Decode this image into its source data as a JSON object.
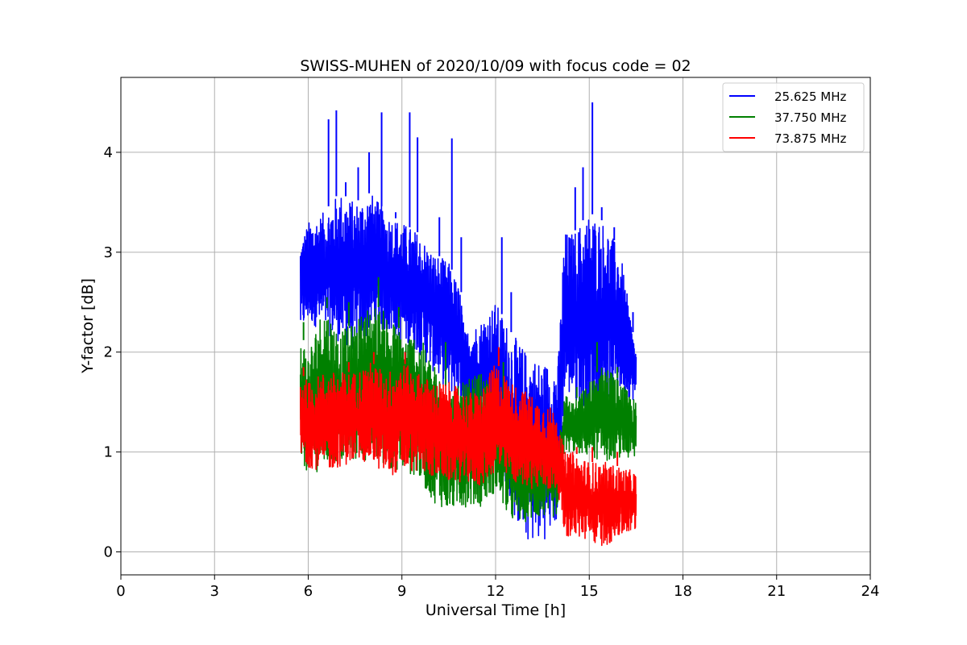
{
  "chart_data": {
    "type": "line",
    "title": "SWISS-MUHEN of 2020/10/09 with focus code = 02",
    "xlabel": "Universal Time [h]",
    "ylabel": "Y-factor [dB]",
    "xlim": [
      0,
      24
    ],
    "ylim": [
      -0.23,
      4.75
    ],
    "xticks": [
      0,
      3,
      6,
      9,
      12,
      15,
      18,
      21,
      24
    ],
    "yticks": [
      0,
      1,
      2,
      3,
      4
    ],
    "grid": true,
    "legend_position": "top-right",
    "series": [
      {
        "name": "25.625 MHz",
        "color": "#0000ff",
        "envelope": [
          [
            5.75,
            2.2,
            3.1
          ],
          [
            6.0,
            2.3,
            3.3
          ],
          [
            6.5,
            2.2,
            3.4
          ],
          [
            7.0,
            2.1,
            3.6
          ],
          [
            7.5,
            2.0,
            3.5
          ],
          [
            8.0,
            2.2,
            3.6
          ],
          [
            8.5,
            2.2,
            3.4
          ],
          [
            9.0,
            2.1,
            3.3
          ],
          [
            9.5,
            2.0,
            3.2
          ],
          [
            10.0,
            1.8,
            3.0
          ],
          [
            10.5,
            1.6,
            2.9
          ],
          [
            10.9,
            1.5,
            2.6
          ],
          [
            11.0,
            1.4,
            2.2
          ],
          [
            11.5,
            1.3,
            2.3
          ],
          [
            12.0,
            1.2,
            2.5
          ],
          [
            12.5,
            0.4,
            2.2
          ],
          [
            13.0,
            0.1,
            2.0
          ],
          [
            13.5,
            0.1,
            1.9
          ],
          [
            14.0,
            0.3,
            1.9
          ],
          [
            14.2,
            1.6,
            3.2
          ],
          [
            14.5,
            1.5,
            3.2
          ],
          [
            15.0,
            1.3,
            3.4
          ],
          [
            15.5,
            1.5,
            3.3
          ],
          [
            16.0,
            1.6,
            3.0
          ],
          [
            16.5,
            1.5,
            2.0
          ]
        ],
        "peaks": [
          [
            6.65,
            4.33
          ],
          [
            6.9,
            4.42
          ],
          [
            7.2,
            3.7
          ],
          [
            7.6,
            3.85
          ],
          [
            7.95,
            4.0
          ],
          [
            8.35,
            4.4
          ],
          [
            8.8,
            3.4
          ],
          [
            9.25,
            4.4
          ],
          [
            9.5,
            4.15
          ],
          [
            10.2,
            3.35
          ],
          [
            10.6,
            4.14
          ],
          [
            10.9,
            3.15
          ],
          [
            12.2,
            3.15
          ],
          [
            12.5,
            2.6
          ],
          [
            14.55,
            3.65
          ],
          [
            14.8,
            3.85
          ],
          [
            15.1,
            4.5
          ],
          [
            15.4,
            3.45
          ],
          [
            15.8,
            3.25
          ],
          [
            16.4,
            2.4
          ]
        ]
      },
      {
        "name": "37.750 MHz",
        "color": "#008000",
        "envelope": [
          [
            5.75,
            0.85,
            2.2
          ],
          [
            6.0,
            0.8,
            2.0
          ],
          [
            6.5,
            0.8,
            2.5
          ],
          [
            7.0,
            0.85,
            2.2
          ],
          [
            7.5,
            0.9,
            2.3
          ],
          [
            8.0,
            0.9,
            2.5
          ],
          [
            8.5,
            0.85,
            2.4
          ],
          [
            9.0,
            0.8,
            2.2
          ],
          [
            9.5,
            0.75,
            2.2
          ],
          [
            10.0,
            0.5,
            1.9
          ],
          [
            10.5,
            0.4,
            1.6
          ],
          [
            11.0,
            0.45,
            1.7
          ],
          [
            11.5,
            0.45,
            1.8
          ],
          [
            12.0,
            0.6,
            1.6
          ],
          [
            12.5,
            0.3,
            1.4
          ],
          [
            13.0,
            0.3,
            1.2
          ],
          [
            13.5,
            0.35,
            1.1
          ],
          [
            14.0,
            0.35,
            1.1
          ],
          [
            14.2,
            1.0,
            1.6
          ],
          [
            14.5,
            1.0,
            1.5
          ],
          [
            15.0,
            0.95,
            1.7
          ],
          [
            15.5,
            0.9,
            1.9
          ],
          [
            16.0,
            0.95,
            1.7
          ],
          [
            16.5,
            0.9,
            1.5
          ]
        ],
        "peaks": [
          [
            5.85,
            2.3
          ],
          [
            6.6,
            2.55
          ],
          [
            7.3,
            2.5
          ],
          [
            8.25,
            2.75
          ],
          [
            8.9,
            2.45
          ],
          [
            10.4,
            2.1
          ],
          [
            12.25,
            1.9
          ],
          [
            14.6,
            1.65
          ],
          [
            15.25,
            2.1
          ],
          [
            15.9,
            1.85
          ]
        ]
      },
      {
        "name": "73.875 MHz",
        "color": "#ff0000",
        "envelope": [
          [
            5.75,
            0.9,
            1.8
          ],
          [
            6.0,
            0.85,
            1.7
          ],
          [
            6.5,
            0.8,
            1.8
          ],
          [
            7.0,
            0.85,
            1.8
          ],
          [
            7.5,
            0.9,
            1.8
          ],
          [
            8.0,
            0.9,
            1.9
          ],
          [
            8.5,
            0.75,
            1.8
          ],
          [
            9.0,
            0.8,
            1.9
          ],
          [
            9.5,
            0.8,
            1.8
          ],
          [
            10.0,
            0.75,
            1.7
          ],
          [
            10.5,
            0.7,
            1.7
          ],
          [
            11.0,
            0.7,
            1.6
          ],
          [
            11.5,
            0.65,
            1.6
          ],
          [
            12.0,
            0.8,
            1.9
          ],
          [
            12.5,
            0.7,
            1.7
          ],
          [
            13.0,
            0.65,
            1.6
          ],
          [
            13.5,
            0.6,
            1.5
          ],
          [
            14.0,
            0.6,
            1.4
          ],
          [
            14.2,
            0.15,
            1.0
          ],
          [
            14.5,
            0.15,
            1.0
          ],
          [
            15.0,
            0.1,
            0.9
          ],
          [
            15.5,
            0.05,
            0.9
          ],
          [
            16.0,
            0.15,
            0.85
          ],
          [
            16.5,
            0.2,
            0.8
          ]
        ],
        "peaks": [
          [
            5.85,
            1.85
          ],
          [
            7.3,
            1.9
          ],
          [
            8.1,
            2.0
          ],
          [
            9.1,
            2.0
          ],
          [
            12.1,
            2.05
          ],
          [
            14.6,
            1.05
          ],
          [
            15.1,
            1.05
          ],
          [
            15.9,
            1.0
          ]
        ]
      }
    ]
  }
}
